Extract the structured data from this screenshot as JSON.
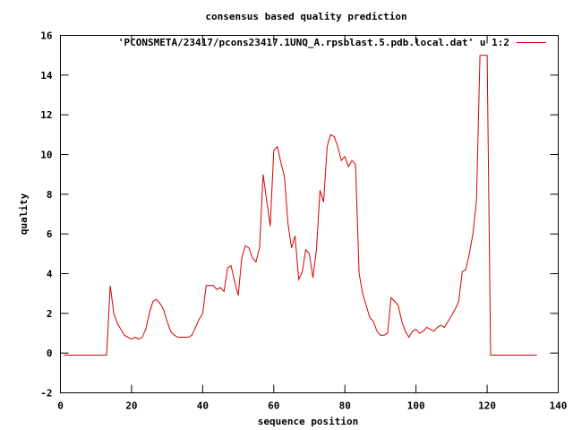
{
  "chart_data": {
    "type": "line",
    "title": "consensus based quality prediction",
    "xlabel": "sequence position",
    "ylabel": "quality",
    "xlim": [
      0,
      140
    ],
    "ylim": [
      -2,
      16
    ],
    "xticks": [
      0,
      20,
      40,
      60,
      80,
      100,
      120,
      140
    ],
    "yticks": [
      -2,
      0,
      2,
      4,
      6,
      8,
      10,
      12,
      14,
      16
    ],
    "grid": false,
    "legend_position": "top-right",
    "series": [
      {
        "name": "'PCONSMETA/23417/pcons23417.1UNQ_A.rpsblast.5.pdb.local.dat' u 1:2",
        "color": "#d40000",
        "x": [
          1,
          2,
          3,
          4,
          5,
          6,
          7,
          8,
          9,
          10,
          11,
          12,
          13,
          14,
          15,
          16,
          17,
          18,
          19,
          20,
          21,
          22,
          23,
          24,
          25,
          26,
          27,
          28,
          29,
          30,
          31,
          32,
          33,
          34,
          35,
          36,
          37,
          38,
          39,
          40,
          41,
          42,
          43,
          44,
          45,
          46,
          47,
          48,
          49,
          50,
          51,
          52,
          53,
          54,
          55,
          56,
          57,
          58,
          59,
          60,
          61,
          62,
          63,
          64,
          65,
          66,
          67,
          68,
          69,
          70,
          71,
          72,
          73,
          74,
          75,
          76,
          77,
          78,
          79,
          80,
          81,
          82,
          83,
          84,
          85,
          86,
          87,
          88,
          89,
          90,
          91,
          92,
          93,
          94,
          95,
          96,
          97,
          98,
          99,
          100,
          101,
          102,
          103,
          104,
          105,
          106,
          107,
          108,
          109,
          110,
          111,
          112,
          113,
          114,
          115,
          116,
          117,
          118,
          119,
          120,
          121,
          122,
          123,
          124,
          125,
          126,
          127,
          128,
          129,
          130,
          131,
          132,
          133,
          134
        ],
        "y": [
          -0.1,
          -0.1,
          -0.1,
          -0.1,
          -0.1,
          -0.1,
          -0.1,
          -0.1,
          -0.1,
          -0.1,
          -0.1,
          -0.1,
          -0.1,
          3.4,
          2.0,
          1.5,
          1.2,
          0.9,
          0.8,
          0.7,
          0.8,
          0.7,
          0.8,
          1.2,
          2.0,
          2.6,
          2.7,
          2.5,
          2.2,
          1.6,
          1.1,
          0.9,
          0.8,
          0.8,
          0.8,
          0.8,
          0.9,
          1.3,
          1.7,
          2.0,
          3.4,
          3.4,
          3.4,
          3.2,
          3.3,
          3.1,
          4.3,
          4.4,
          3.6,
          2.9,
          4.8,
          5.4,
          5.3,
          4.8,
          4.6,
          5.3,
          9.0,
          7.7,
          6.4,
          10.2,
          10.4,
          9.6,
          8.9,
          6.5,
          5.3,
          5.9,
          3.7,
          4.1,
          5.2,
          5.0,
          3.8,
          5.2,
          8.2,
          7.6,
          10.4,
          11.0,
          10.9,
          10.4,
          9.7,
          9.9,
          9.4,
          9.7,
          9.5,
          4.0,
          3.0,
          2.4,
          1.8,
          1.6,
          1.1,
          0.9,
          0.9,
          1.0,
          2.8,
          2.6,
          2.4,
          1.6,
          1.1,
          0.8,
          1.1,
          1.2,
          1.0,
          1.1,
          1.3,
          1.2,
          1.1,
          1.3,
          1.4,
          1.3,
          1.6,
          1.9,
          2.2,
          2.6,
          4.1,
          4.2,
          5.0,
          6.0,
          7.7,
          15.0,
          15.0,
          15.0,
          -0.1,
          -0.1,
          -0.1,
          -0.1,
          -0.1,
          -0.1,
          -0.1,
          -0.1,
          -0.1,
          -0.1,
          -0.1,
          -0.1,
          -0.1,
          -0.1
        ]
      }
    ]
  }
}
